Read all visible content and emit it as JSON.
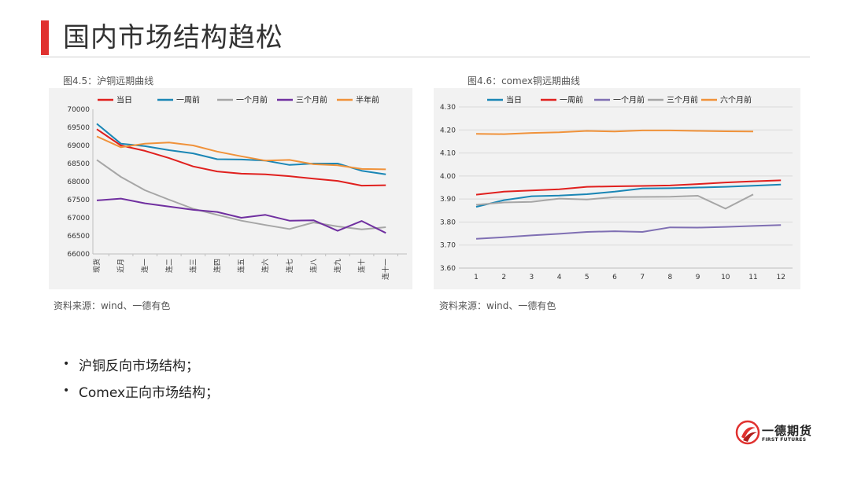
{
  "page": {
    "title": "国内市场结构趋松",
    "bullets": [
      "沪铜反向市场结构；",
      "Comex正向市场结构；"
    ],
    "logo": {
      "cn": "一德期货",
      "en": "FIRST FUTURES",
      "icon": "flame-swirl-logo-icon"
    },
    "accent_color": "#e0312f"
  },
  "charts_text": [
    {
      "caption": "图4.5：沪铜远期曲线",
      "source": "资料来源：wind、一德有色"
    },
    {
      "caption": "图4.6：comex铜远期曲线",
      "source": "资料来源：wind、一德有色"
    }
  ],
  "chart_data": [
    {
      "type": "line",
      "title": "",
      "categories": [
        "现货",
        "近月",
        "连一",
        "连二",
        "连三",
        "连四",
        "连五",
        "连六",
        "连七",
        "连八",
        "连九",
        "连十",
        "连十一"
      ],
      "ylim": [
        66000,
        70000
      ],
      "yticks": [
        66000,
        66500,
        67000,
        67500,
        68000,
        68500,
        69000,
        69500,
        70000
      ],
      "grid": false,
      "legend_position": "top",
      "series": [
        {
          "name": "当日",
          "color": "#e0201e",
          "values": [
            69450,
            69000,
            68850,
            68650,
            68420,
            68280,
            68220,
            68200,
            68150,
            68080,
            68020,
            67890,
            67900
          ]
        },
        {
          "name": "一周前",
          "color": "#1a86b5",
          "values": [
            69600,
            69050,
            68980,
            68870,
            68780,
            68620,
            68610,
            68580,
            68460,
            68500,
            68500,
            68300,
            68200
          ]
        },
        {
          "name": "一个月前",
          "color": "#a6a6a6",
          "values": [
            68600,
            68130,
            67760,
            67500,
            67250,
            67080,
            66920,
            66800,
            66690,
            66870,
            66760,
            66680,
            66740
          ]
        },
        {
          "name": "三个月前",
          "color": "#7030a0",
          "values": [
            67480,
            67530,
            67400,
            67310,
            67220,
            67160,
            67000,
            67080,
            66920,
            66930,
            66640,
            66910,
            66580
          ]
        },
        {
          "name": "半年前",
          "color": "#f0923a",
          "values": [
            69250,
            68950,
            69050,
            69080,
            69000,
            68830,
            68700,
            68580,
            68600,
            68480,
            68450,
            68350,
            68340
          ]
        }
      ]
    },
    {
      "type": "line",
      "title": "",
      "categories": [
        "1",
        "2",
        "3",
        "4",
        "5",
        "6",
        "7",
        "8",
        "9",
        "10",
        "11",
        "12"
      ],
      "ylim": [
        3.6,
        4.3
      ],
      "yticks": [
        "3.60",
        "3.70",
        "3.80",
        "3.90",
        "4.00",
        "4.10",
        "4.20",
        "4.30"
      ],
      "grid": true,
      "legend_position": "top",
      "series": [
        {
          "name": "当日",
          "color": "#1a86b5",
          "values": [
            3.866,
            3.895,
            3.912,
            3.915,
            3.921,
            3.932,
            3.946,
            3.947,
            3.95,
            3.953,
            3.958,
            3.963
          ]
        },
        {
          "name": "一周前",
          "color": "#e0201e",
          "values": [
            3.919,
            3.932,
            3.937,
            3.942,
            3.953,
            3.955,
            3.957,
            3.959,
            3.965,
            3.972,
            3.977,
            3.981
          ]
        },
        {
          "name": "一个月前",
          "color": "#7f6fb3",
          "values": [
            3.727,
            3.734,
            3.742,
            3.749,
            3.757,
            3.76,
            3.757,
            3.777,
            3.776,
            3.779,
            3.783,
            3.787
          ]
        },
        {
          "name": "三个月前",
          "color": "#a6a6a6",
          "values": [
            3.875,
            3.885,
            3.888,
            3.902,
            3.898,
            3.908,
            3.909,
            3.91,
            3.914,
            3.858,
            3.92,
            null
          ]
        },
        {
          "name": "六个月前",
          "color": "#f0923a",
          "values": [
            4.183,
            4.182,
            4.187,
            4.19,
            4.196,
            4.193,
            4.198,
            4.198,
            4.196,
            4.194,
            4.193,
            null
          ]
        }
      ]
    }
  ]
}
